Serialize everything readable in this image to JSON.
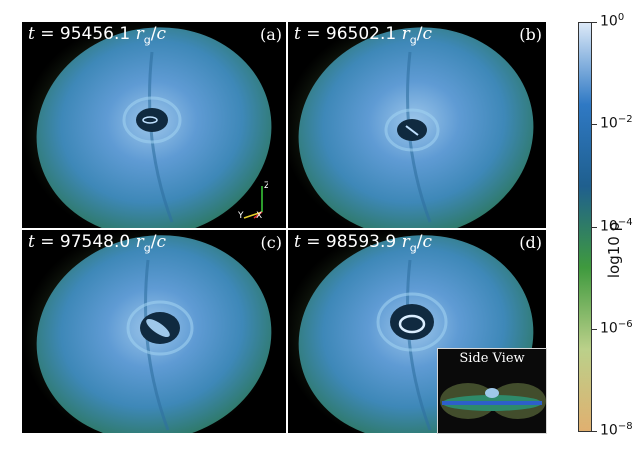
{
  "panels": [
    {
      "time": "t = 95456.1 r_g/c",
      "time_value": "95456.1",
      "label": "(a)"
    },
    {
      "time": "t = 96502.1 r_g/c",
      "time_value": "96502.1",
      "label": "(b)"
    },
    {
      "time": "t = 97548.0 r_g/c",
      "time_value": "97548.0",
      "label": "(c)"
    },
    {
      "time": "t = 98593.9 r_g/c",
      "time_value": "98593.9",
      "label": "(d)"
    }
  ],
  "axes_triad": {
    "z": "Z",
    "y": "Y",
    "x": "X"
  },
  "inset": {
    "title": "Side View"
  },
  "colorbar": {
    "label": "log10 ρ",
    "ticks": [
      {
        "base": "10",
        "exp": "0"
      },
      {
        "base": "10",
        "exp": "−2"
      },
      {
        "base": "10",
        "exp": "−4"
      },
      {
        "base": "10",
        "exp": "−6"
      },
      {
        "base": "10",
        "exp": "−8"
      }
    ],
    "colors": [
      "#e0b070",
      "#bbd08a",
      "#3f9a3e",
      "#1f5f8e",
      "#2f79c4",
      "#dce9f8"
    ]
  }
}
